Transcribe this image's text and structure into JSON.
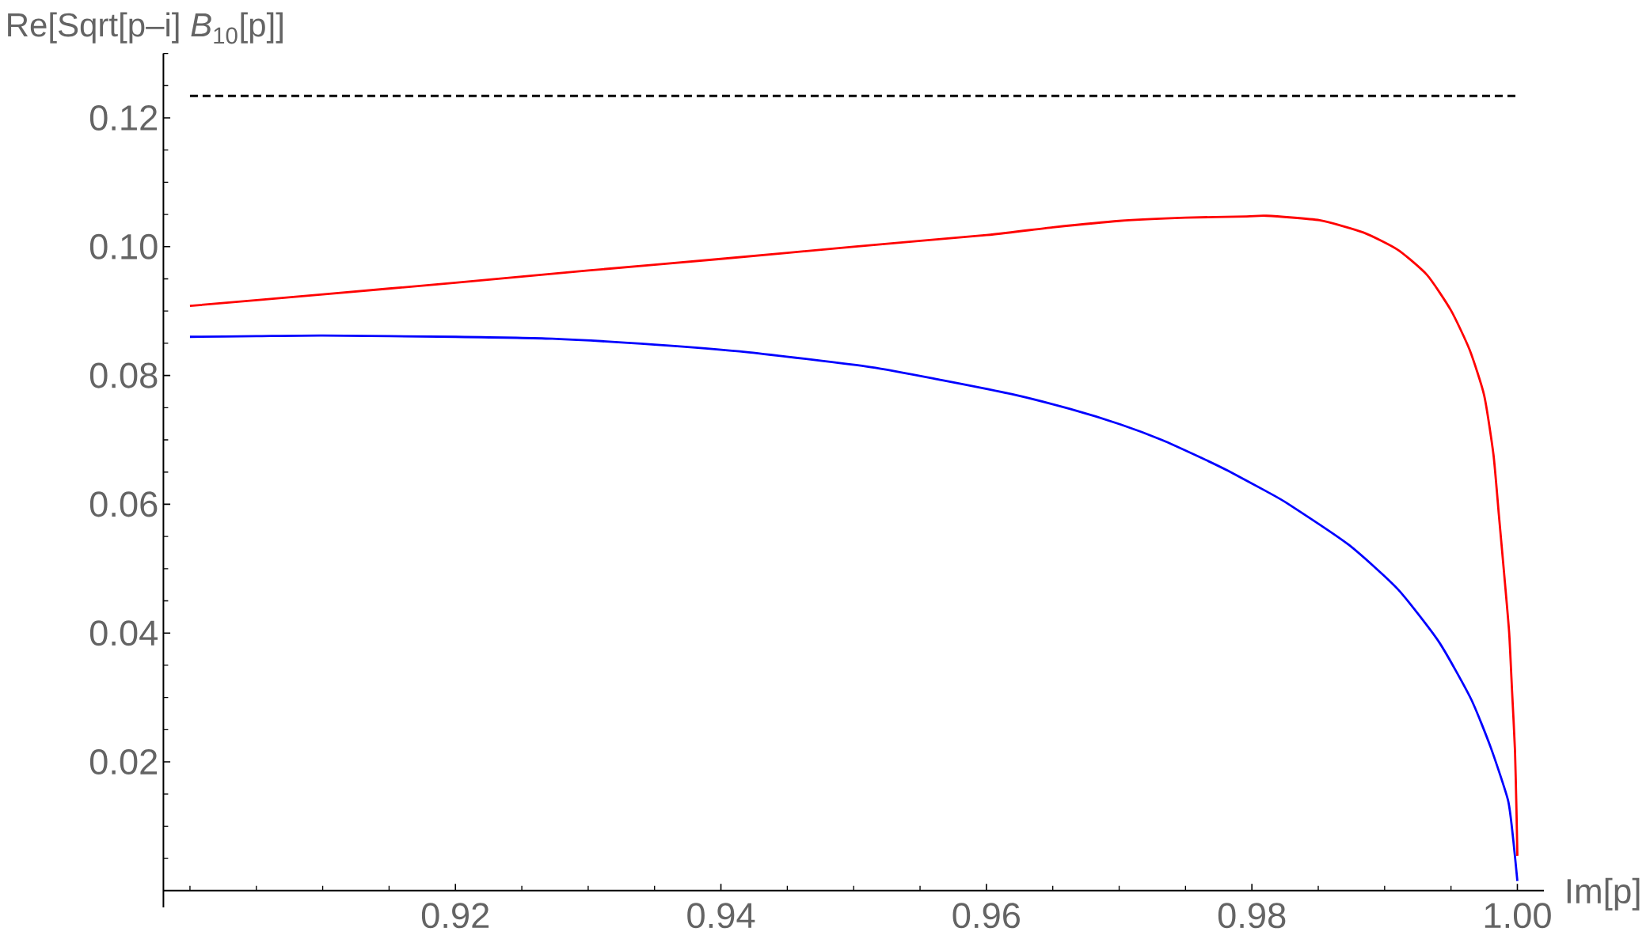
{
  "chart_data": {
    "type": "line",
    "ylabel": "Re[Sqrt[p–i] *B*$_{10}$[p]]",
    "xlabel": "Im[p]",
    "xlim": [
      0.898,
      1.002
    ],
    "ylim": [
      -0.0026,
      0.13
    ],
    "xticks": [
      {
        "value": 0.9,
        "label": null
      },
      {
        "value": 0.905,
        "label": null
      },
      {
        "value": 0.91,
        "label": null
      },
      {
        "value": 0.915,
        "label": null
      },
      0.92,
      {
        "value": 0.925,
        "label": null
      },
      {
        "value": 0.93,
        "label": null
      },
      {
        "value": 0.935,
        "label": null
      },
      0.94,
      {
        "value": 0.945,
        "label": null
      },
      {
        "value": 0.95,
        "label": null
      },
      {
        "value": 0.955,
        "label": null
      },
      0.96,
      {
        "value": 0.965,
        "label": null
      },
      {
        "value": 0.97,
        "label": null
      },
      {
        "value": 0.975,
        "label": null
      },
      0.98,
      {
        "value": 0.985,
        "label": null
      },
      {
        "value": 0.99,
        "label": null
      },
      {
        "value": 0.995,
        "label": null
      },
      {
        "value": 1.0,
        "label": "1.00"
      }
    ],
    "yticks": [
      {
        "value": 0.005,
        "label": null
      },
      {
        "value": 0.01,
        "label": null
      },
      {
        "value": 0.015,
        "label": null
      },
      0.02,
      {
        "value": 0.025,
        "label": null
      },
      {
        "value": 0.03,
        "label": null
      },
      {
        "value": 0.035,
        "label": null
      },
      0.04,
      {
        "value": 0.045,
        "label": null
      },
      {
        "value": 0.05,
        "label": null
      },
      {
        "value": 0.055,
        "label": null
      },
      0.06,
      {
        "value": 0.065,
        "label": null
      },
      {
        "value": 0.07,
        "label": null
      },
      {
        "value": 0.075,
        "label": null
      },
      0.08,
      {
        "value": 0.085,
        "label": null
      },
      {
        "value": 0.09,
        "label": null
      },
      {
        "value": 0.095,
        "label": null
      },
      {
        "value": 0.1,
        "label": "0.10"
      },
      {
        "value": 0.105,
        "label": null
      },
      {
        "value": 0.11,
        "label": null
      },
      {
        "value": 0.115,
        "label": null
      },
      0.12,
      {
        "value": 0.125,
        "label": null
      },
      {
        "value": 0.13,
        "label": null
      }
    ],
    "series": [
      {
        "color": "#ff0000",
        "x": [
          0.9,
          0.91,
          0.92,
          0.93,
          0.94,
          0.95,
          0.96,
          0.965,
          0.97,
          0.975,
          0.9796,
          0.9811,
          0.9851,
          0.9884,
          0.991,
          0.9932,
          0.995,
          0.9964,
          0.9975,
          0.9982,
          0.9986,
          0.999,
          0.99938,
          0.9996,
          0.99982,
          0.99993,
          1.0
        ],
        "values": [
          0.0908,
          0.0926,
          0.0944,
          0.0963,
          0.0981,
          0.1,
          0.1018,
          0.103,
          0.104,
          0.1045,
          0.1047,
          0.1048,
          0.1041,
          0.1022,
          0.0995,
          0.0956,
          0.0901,
          0.084,
          0.0769,
          0.0677,
          0.0585,
          0.0493,
          0.0401,
          0.031,
          0.0218,
          0.0127,
          0.0054
        ]
      },
      {
        "color": "#0000ff",
        "x": [
          0.9,
          0.905,
          0.91,
          0.92,
          0.9273,
          0.935,
          0.9421,
          0.9513,
          0.9566,
          0.9619,
          0.9663,
          0.9701,
          0.9732,
          0.9762,
          0.9782,
          0.9811,
          0.9827,
          0.9873,
          0.991,
          0.9941,
          0.9965,
          0.998,
          0.9993,
          0.9997,
          1.0
        ],
        "values": [
          0.086,
          0.0861,
          0.0862,
          0.086,
          0.0857,
          0.0848,
          0.0836,
          0.0813,
          0.0793,
          0.0771,
          0.0748,
          0.0724,
          0.07,
          0.0672,
          0.0652,
          0.062,
          0.0601,
          0.0537,
          0.0468,
          0.0386,
          0.0298,
          0.0222,
          0.014,
          0.0077,
          0.0015
        ]
      }
    ],
    "ref_lines": [
      {
        "axis": "y",
        "value": 0.1234,
        "color": "#000000",
        "line_style": "dotted"
      }
    ]
  }
}
